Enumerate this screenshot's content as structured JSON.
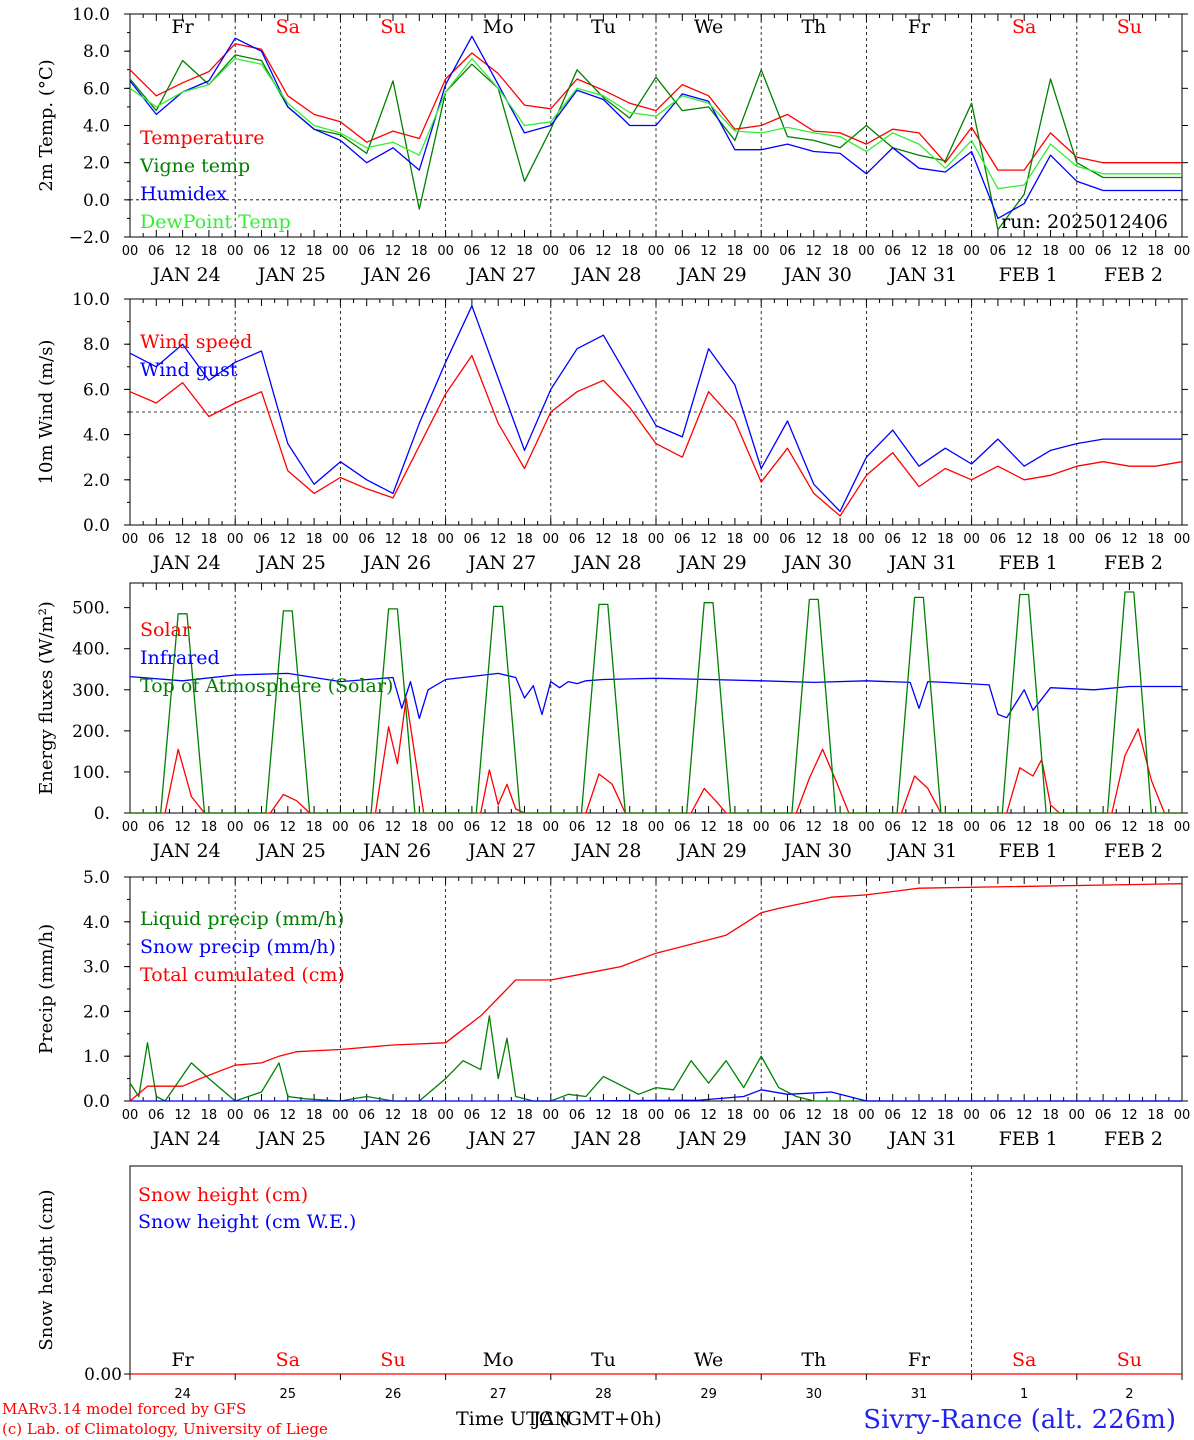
{
  "run_label": "run: 2025012406",
  "footer": {
    "line1": "MARv3.14 model forced by GFS",
    "line2": "(c) Lab. of Climatology, University of Liege",
    "xlabel": "Time UTC (GMT+0h)",
    "xlabel_overlap": "JAN",
    "station": "Sivry-Rance (alt. 226m)"
  },
  "days": {
    "weekday_labels": [
      "Fr",
      "Sa",
      "Su",
      "Mo",
      "Tu",
      "We",
      "Th",
      "Fr",
      "Sa",
      "Su"
    ],
    "weekend": [
      false,
      true,
      true,
      false,
      false,
      false,
      false,
      false,
      true,
      true
    ],
    "date_labels": [
      "JAN 24",
      "JAN 25",
      "JAN 26",
      "JAN 27",
      "JAN 28",
      "JAN 29",
      "JAN 30",
      "JAN 31",
      "FEB  1",
      "FEB  2"
    ],
    "hour_labels": [
      "00",
      "06",
      "12",
      "18"
    ],
    "end_hour_label": "00",
    "day_numbers": [
      "24",
      "25",
      "26",
      "27",
      "28",
      "29",
      "30",
      "31",
      "1",
      "2"
    ]
  },
  "colors": {
    "red": "#ff0000",
    "green": "#008000",
    "blue": "#0000ff",
    "lightgreen": "#33ee33",
    "weekend": "#ff0000",
    "station": "#2222ee"
  },
  "chart_data": [
    {
      "type": "line",
      "ylabel": "2m Temp. (°C)",
      "ylim": [
        -2,
        10
      ],
      "yticks": [
        "10.0",
        "8.0",
        "6.0",
        "4.0",
        "2.0",
        "0.0",
        "−2.0"
      ],
      "x_unit": "hours since 2025-01-24 00 UTC",
      "zero_line": 0,
      "series": [
        {
          "name": "Temperature",
          "color": "#ff0000",
          "x": [
            0,
            6,
            12,
            18,
            24,
            30,
            36,
            42,
            48,
            54,
            60,
            66,
            72,
            78,
            84,
            90,
            96,
            102,
            108,
            114,
            120,
            126,
            132,
            138,
            144,
            150,
            156,
            162,
            168,
            174,
            180,
            186,
            192,
            198,
            204,
            210,
            216,
            222,
            228,
            234,
            240
          ],
          "y": [
            7.0,
            5.6,
            6.3,
            6.9,
            8.4,
            8.1,
            5.6,
            4.6,
            4.2,
            3.1,
            3.7,
            3.3,
            6.5,
            7.9,
            6.8,
            5.1,
            4.9,
            6.5,
            5.9,
            5.2,
            4.8,
            6.2,
            5.6,
            3.8,
            4.0,
            4.6,
            3.7,
            3.6,
            3.0,
            3.8,
            3.6,
            2.0,
            3.9,
            1.6,
            1.6,
            3.6,
            2.3,
            2.0,
            2.0,
            2.0,
            2.0
          ]
        },
        {
          "name": "Vigne temp",
          "color": "#008000",
          "x": [
            0,
            6,
            12,
            18,
            24,
            30,
            36,
            42,
            48,
            54,
            60,
            66,
            72,
            78,
            84,
            90,
            96,
            102,
            108,
            114,
            120,
            126,
            132,
            138,
            144,
            150,
            156,
            162,
            168,
            174,
            180,
            186,
            192,
            198,
            204,
            210,
            216,
            222,
            228,
            234,
            240
          ],
          "y": [
            6.5,
            4.8,
            7.5,
            6.2,
            7.8,
            7.5,
            5.0,
            3.8,
            3.5,
            2.5,
            6.4,
            -0.5,
            5.8,
            7.3,
            6.0,
            1.0,
            3.8,
            7.0,
            5.5,
            4.4,
            6.6,
            4.8,
            5.0,
            3.2,
            7.0,
            3.4,
            3.2,
            2.8,
            4.0,
            2.8,
            2.4,
            2.1,
            5.2,
            -1.6,
            0.3,
            6.5,
            2.0,
            1.2,
            1.2,
            1.2,
            1.2
          ]
        },
        {
          "name": "Humidex",
          "color": "#0000ff",
          "x": [
            0,
            6,
            12,
            18,
            24,
            30,
            36,
            42,
            48,
            54,
            60,
            66,
            72,
            78,
            84,
            90,
            96,
            102,
            108,
            114,
            120,
            126,
            132,
            138,
            144,
            150,
            156,
            162,
            168,
            174,
            180,
            186,
            192,
            198,
            204,
            210,
            216,
            222,
            228,
            234,
            240
          ],
          "y": [
            6.4,
            4.6,
            5.8,
            6.4,
            8.7,
            8.0,
            5.0,
            3.8,
            3.2,
            2.0,
            2.8,
            1.6,
            6.2,
            8.8,
            6.2,
            3.6,
            4.0,
            5.9,
            5.4,
            4.0,
            4.0,
            5.7,
            5.3,
            2.7,
            2.7,
            3.0,
            2.6,
            2.5,
            1.4,
            2.8,
            1.7,
            1.5,
            2.6,
            -1.0,
            -0.2,
            2.4,
            1.0,
            0.5,
            0.5,
            0.5,
            0.5
          ]
        },
        {
          "name": "DewPoint Temp",
          "color": "#33ee33",
          "x": [
            0,
            6,
            12,
            18,
            24,
            30,
            36,
            42,
            48,
            54,
            60,
            66,
            72,
            78,
            84,
            90,
            96,
            102,
            108,
            114,
            120,
            126,
            132,
            138,
            144,
            150,
            156,
            162,
            168,
            174,
            180,
            186,
            192,
            198,
            204,
            210,
            216,
            222,
            228,
            234,
            240
          ],
          "y": [
            6.0,
            5.0,
            5.8,
            6.2,
            7.6,
            7.3,
            5.2,
            4.0,
            3.6,
            2.8,
            3.1,
            2.4,
            5.8,
            7.6,
            6.0,
            4.0,
            4.2,
            6.0,
            5.6,
            4.7,
            4.5,
            5.6,
            5.2,
            3.7,
            3.6,
            3.9,
            3.6,
            3.4,
            2.6,
            3.6,
            3.0,
            1.7,
            3.2,
            0.6,
            0.8,
            3.0,
            1.8,
            1.4,
            1.4,
            1.4,
            1.4
          ]
        }
      ]
    },
    {
      "type": "line",
      "ylabel": "10m Wind (m/s)",
      "ylim": [
        0,
        10
      ],
      "yticks": [
        "10.0",
        "8.0",
        "6.0",
        "4.0",
        "2.0",
        "0.0"
      ],
      "reference_line": 5,
      "series": [
        {
          "name": "Wind speed",
          "color": "#ff0000",
          "x": [
            0,
            6,
            12,
            18,
            24,
            30,
            36,
            42,
            48,
            54,
            60,
            66,
            72,
            78,
            84,
            90,
            96,
            102,
            108,
            114,
            120,
            126,
            132,
            138,
            144,
            150,
            156,
            162,
            168,
            174,
            180,
            186,
            192,
            198,
            204,
            210,
            216,
            222,
            228,
            234,
            240
          ],
          "y": [
            5.9,
            5.4,
            6.3,
            4.8,
            5.4,
            5.9,
            2.4,
            1.4,
            2.1,
            1.6,
            1.2,
            3.5,
            5.8,
            7.5,
            4.5,
            2.5,
            5.0,
            5.9,
            6.4,
            5.2,
            3.6,
            3.0,
            5.9,
            4.6,
            1.9,
            3.4,
            1.4,
            0.4,
            2.2,
            3.2,
            1.7,
            2.5,
            2.0,
            2.6,
            2.0,
            2.2,
            2.6,
            2.8,
            2.6,
            2.6,
            2.8
          ]
        },
        {
          "name": "Wind gust",
          "color": "#0000ff",
          "x": [
            0,
            6,
            12,
            18,
            24,
            30,
            36,
            42,
            48,
            54,
            60,
            66,
            72,
            78,
            84,
            90,
            96,
            102,
            108,
            114,
            120,
            126,
            132,
            138,
            144,
            150,
            156,
            162,
            168,
            174,
            180,
            186,
            192,
            198,
            204,
            210,
            216,
            222,
            228,
            234,
            240
          ],
          "y": [
            7.6,
            7.0,
            8.0,
            6.4,
            7.2,
            7.7,
            3.6,
            1.8,
            2.8,
            2.0,
            1.4,
            4.5,
            7.2,
            9.7,
            6.5,
            3.3,
            6.0,
            7.8,
            8.4,
            6.4,
            4.4,
            3.9,
            7.8,
            6.2,
            2.5,
            4.6,
            1.8,
            0.6,
            3.0,
            4.2,
            2.6,
            3.4,
            2.7,
            3.8,
            2.6,
            3.3,
            3.6,
            3.8,
            3.8,
            3.8,
            3.8
          ]
        }
      ]
    },
    {
      "type": "line",
      "ylabel": "Energy fluxes (W/m²)",
      "ylim": [
        0,
        560
      ],
      "yticks": [
        "500.",
        "400.",
        "300.",
        "200.",
        "100.",
        "0."
      ],
      "series": [
        {
          "name": "Solar",
          "color": "#ff0000",
          "x": [
            0,
            8,
            11,
            14,
            17,
            32,
            35,
            38,
            41,
            56,
            59,
            61,
            63,
            65,
            67,
            80,
            82,
            84,
            86,
            88,
            90,
            104,
            107,
            110,
            113,
            116,
            128,
            131,
            134,
            136,
            138,
            152,
            155,
            158,
            161,
            164,
            176,
            179,
            182,
            185,
            188,
            200,
            203,
            206,
            208,
            210,
            212,
            224,
            227,
            230,
            233,
            236,
            240
          ],
          "y": [
            0,
            0,
            155,
            40,
            0,
            0,
            45,
            30,
            0,
            0,
            210,
            120,
            280,
            140,
            0,
            0,
            105,
            20,
            70,
            10,
            0,
            0,
            95,
            70,
            0,
            0,
            0,
            60,
            25,
            0,
            0,
            0,
            85,
            155,
            80,
            0,
            0,
            90,
            60,
            0,
            0,
            0,
            110,
            90,
            130,
            20,
            0,
            0,
            140,
            205,
            80,
            0,
            0
          ]
        },
        {
          "name": "Infrared",
          "color": "#0000ff",
          "x": [
            0,
            12,
            24,
            36,
            48,
            60,
            62,
            64,
            66,
            68,
            72,
            84,
            88,
            90,
            92,
            94,
            96,
            98,
            100,
            102,
            104,
            108,
            120,
            132,
            144,
            156,
            168,
            178,
            180,
            182,
            186,
            196,
            198,
            200,
            204,
            206,
            210,
            220,
            228,
            240
          ],
          "y": [
            332,
            322,
            336,
            340,
            320,
            330,
            255,
            320,
            230,
            300,
            325,
            340,
            330,
            280,
            310,
            240,
            320,
            305,
            320,
            315,
            322,
            325,
            328,
            325,
            322,
            318,
            322,
            318,
            255,
            320,
            318,
            312,
            240,
            232,
            300,
            250,
            305,
            300,
            308,
            308
          ]
        },
        {
          "name": "Top of Atmosphere (Solar)",
          "color": "#008000",
          "x": [
            0,
            7,
            11,
            13,
            17,
            31,
            35,
            37,
            41,
            55,
            59,
            61,
            65,
            79,
            83,
            85,
            89,
            103,
            107,
            109,
            113,
            127,
            131,
            133,
            137,
            151,
            155,
            157,
            161,
            175,
            179,
            181,
            185,
            199,
            203,
            205,
            209,
            223,
            227,
            229,
            233,
            240
          ],
          "y": [
            0,
            0,
            485,
            485,
            0,
            0,
            492,
            492,
            0,
            0,
            497,
            497,
            0,
            0,
            503,
            503,
            0,
            0,
            508,
            508,
            0,
            0,
            512,
            512,
            0,
            0,
            520,
            520,
            0,
            0,
            525,
            525,
            0,
            0,
            532,
            532,
            0,
            0,
            538,
            538,
            0,
            0
          ]
        }
      ]
    },
    {
      "type": "line",
      "ylabel": "Precip (mm/h)",
      "ylim": [
        0,
        5
      ],
      "yticks": [
        "5.0",
        "4.0",
        "3.0",
        "2.0",
        "1.0",
        "0.0"
      ],
      "series": [
        {
          "name": "Liquid precip (mm/h)",
          "color": "#008000",
          "x": [
            0,
            2,
            4,
            6,
            8,
            14,
            18,
            24,
            30,
            34,
            36,
            40,
            48,
            54,
            60,
            66,
            72,
            76,
            80,
            82,
            84,
            86,
            88,
            92,
            96,
            100,
            104,
            108,
            112,
            116,
            120,
            124,
            128,
            132,
            136,
            140,
            144,
            148,
            152,
            156,
            160,
            168,
            240
          ],
          "y": [
            0.4,
            0.1,
            1.3,
            0.1,
            0,
            0.85,
            0.5,
            0.0,
            0.2,
            0.85,
            0.1,
            0.05,
            0,
            0.1,
            0,
            0,
            0.5,
            0.9,
            0.7,
            1.9,
            0.5,
            1.4,
            0.1,
            0,
            0,
            0.15,
            0.1,
            0.55,
            0.35,
            0.15,
            0.3,
            0.25,
            0.9,
            0.4,
            0.9,
            0.3,
            1.0,
            0.3,
            0.1,
            0,
            0,
            0,
            0
          ]
        },
        {
          "name": "Snow precip (mm/h)",
          "color": "#0000ff",
          "x": [
            0,
            100,
            130,
            140,
            144,
            150,
            160,
            168,
            240
          ],
          "y": [
            0,
            0,
            0.02,
            0.1,
            0.25,
            0.15,
            0.2,
            0,
            0
          ]
        },
        {
          "name": "Total cumulated (cm)",
          "color": "#ff0000",
          "x": [
            0,
            4,
            12,
            16,
            24,
            30,
            34,
            38,
            48,
            60,
            72,
            76,
            80,
            84,
            88,
            96,
            104,
            112,
            120,
            128,
            136,
            144,
            148,
            160,
            168,
            180,
            240
          ],
          "y": [
            0,
            0.33,
            0.33,
            0.5,
            0.8,
            0.85,
            1.0,
            1.1,
            1.15,
            1.25,
            1.3,
            1.6,
            1.9,
            2.3,
            2.7,
            2.7,
            2.85,
            3.0,
            3.3,
            3.5,
            3.7,
            4.2,
            4.3,
            4.55,
            4.6,
            4.75,
            4.85
          ]
        }
      ]
    },
    {
      "type": "line",
      "ylabel": "Snow height (cm)",
      "ytick": "0.00",
      "series": [
        {
          "name": "Snow height (cm)",
          "color": "#ff0000",
          "x": [
            0,
            240
          ],
          "y": [
            0,
            0
          ]
        },
        {
          "name": "Snow height (cm W.E.)",
          "color": "#0000ff",
          "x": [],
          "y": []
        }
      ]
    }
  ]
}
